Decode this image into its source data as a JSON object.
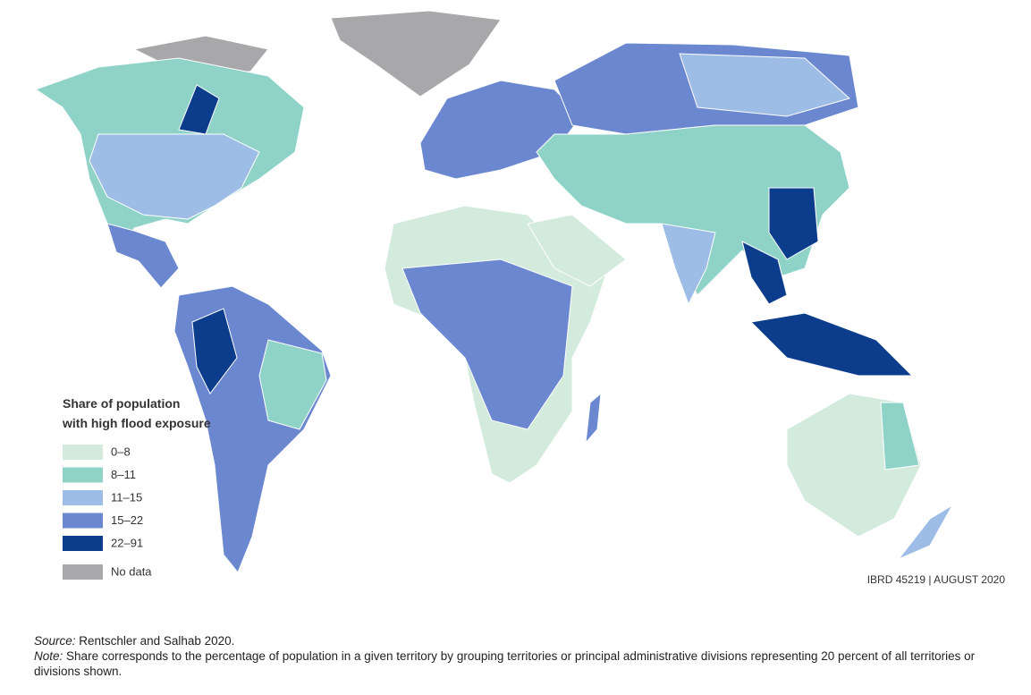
{
  "legend": {
    "title_lines": [
      "Share of population",
      "with high flood exposure"
    ],
    "items": [
      {
        "label": "0–8",
        "color": "#d3ebdd"
      },
      {
        "label": "8–11",
        "color": "#8fd3c8"
      },
      {
        "label": "11–15",
        "color": "#9dbde6"
      },
      {
        "label": "15–22",
        "color": "#6b87cf"
      },
      {
        "label": "22–91",
        "color": "#0c3d8c"
      }
    ],
    "no_data": {
      "label": "No data",
      "color": "#a8a8aa"
    }
  },
  "map_id": "IBRD 45219 | AUGUST 2020",
  "source": {
    "label": "Source:",
    "text": "Rentschler and Salhab 2020."
  },
  "note": {
    "label": "Note:",
    "text": "Share corresponds to the percentage of population in a given territory by grouping territories or principal administrative divisions representing 20 percent of all territories or divisions shown."
  }
}
